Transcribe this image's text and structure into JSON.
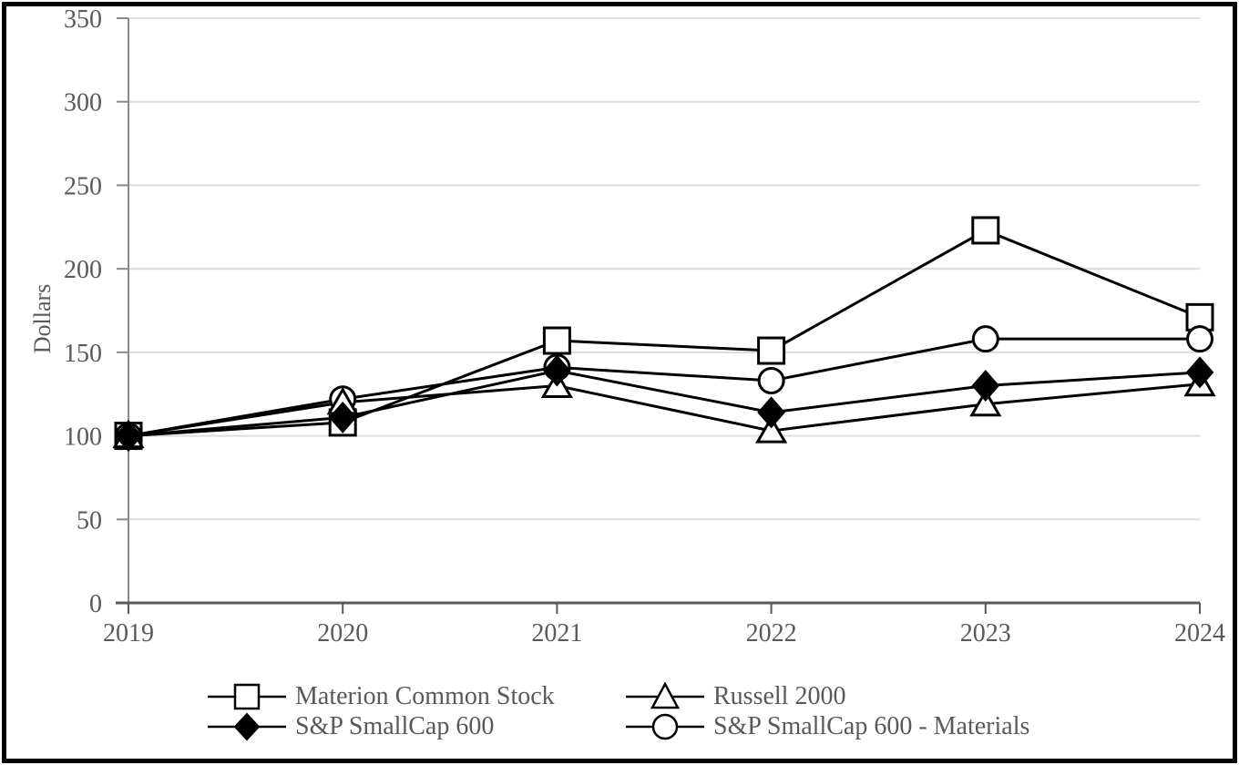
{
  "chart_data": {
    "type": "line",
    "title": "",
    "xlabel": "",
    "ylabel": "Dollars",
    "categories": [
      "2019",
      "2020",
      "2021",
      "2022",
      "2023",
      "2024"
    ],
    "series": [
      {
        "name": "Materion Common Stock",
        "marker": "square",
        "fill": "open",
        "values": [
          100,
          108,
          157,
          151,
          223,
          171
        ]
      },
      {
        "name": "Russell 2000",
        "marker": "triangle",
        "fill": "open",
        "values": [
          100,
          120,
          130,
          103,
          119,
          131
        ]
      },
      {
        "name": "S&P SmallCap 600",
        "marker": "diamond",
        "fill": "solid",
        "values": [
          100,
          111,
          139,
          114,
          130,
          138
        ]
      },
      {
        "name": "S&P SmallCap 600 - Materials",
        "marker": "circle",
        "fill": "open",
        "values": [
          100,
          122,
          141,
          133,
          158,
          158
        ]
      }
    ],
    "ylim": [
      0,
      350
    ],
    "ytick_step": 50,
    "grid": "horizontal",
    "legend_position": "bottom",
    "colors": {
      "series_line": "#000000",
      "marker": "#000000",
      "grid": "#dcdcdc",
      "y_axis": "#8a8a8a",
      "x_axis": "#595959",
      "text": "#595959",
      "background": "#ffffff",
      "border": "#000000"
    }
  }
}
